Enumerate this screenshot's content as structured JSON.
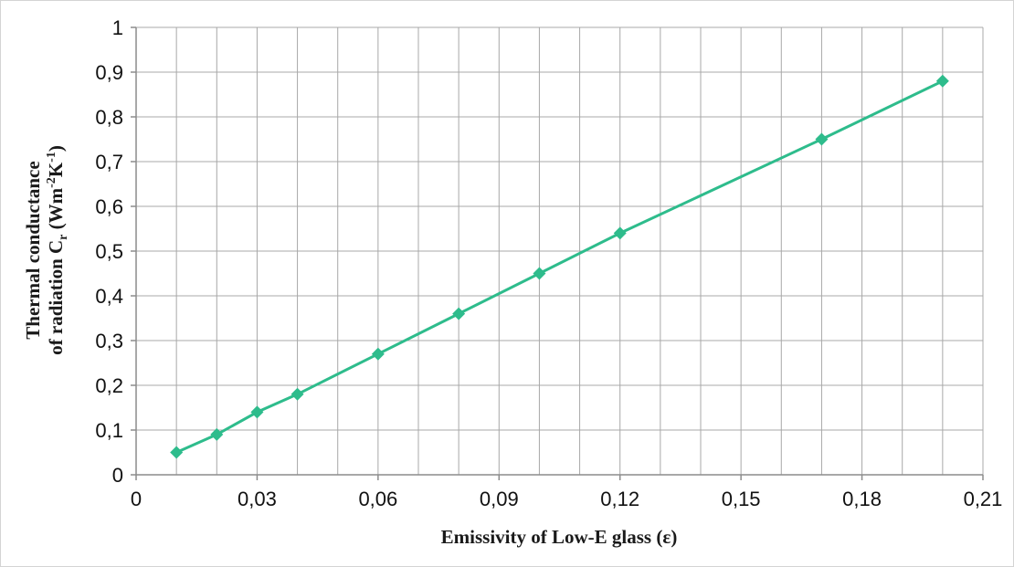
{
  "chart_data": {
    "type": "line",
    "title": "",
    "xlabel": "Emissivity of Low-E glass (ε)",
    "ylabel": {
      "line1": "Thermal conductance",
      "line2_prefix": "of radiation C",
      "line2_sub": "r",
      "line2_mid": " (Wm",
      "line2_sup1": "-2",
      "line2_k": "K",
      "line2_sup2": "-1",
      "line2_end": ")"
    },
    "xlim": [
      0,
      0.21
    ],
    "ylim": [
      0,
      1
    ],
    "x_ticks": [
      0,
      0.03,
      0.06,
      0.09,
      0.12,
      0.15,
      0.18,
      0.21
    ],
    "x_tick_labels": [
      "0",
      "0,03",
      "0,06",
      "0,09",
      "0,12",
      "0,15",
      "0,18",
      "0,21"
    ],
    "y_ticks": [
      0,
      0.1,
      0.2,
      0.3,
      0.4,
      0.5,
      0.6,
      0.7,
      0.8,
      0.9,
      1
    ],
    "y_tick_labels": [
      "0",
      "0,1",
      "0,2",
      "0,3",
      "0,4",
      "0,5",
      "0,6",
      "0,7",
      "0,8",
      "0,9",
      "1"
    ],
    "x_minor_gridlines": 0.01,
    "grid": true,
    "legend": "none",
    "series": [
      {
        "x": [
          0.01,
          0.02,
          0.03,
          0.04,
          0.06,
          0.08,
          0.1,
          0.12,
          0.17,
          0.2
        ],
        "values": [
          0.05,
          0.09,
          0.14,
          0.18,
          0.27,
          0.36,
          0.45,
          0.54,
          0.75,
          0.88
        ],
        "color": "#2ebc8c",
        "marker": "diamond"
      }
    ]
  }
}
